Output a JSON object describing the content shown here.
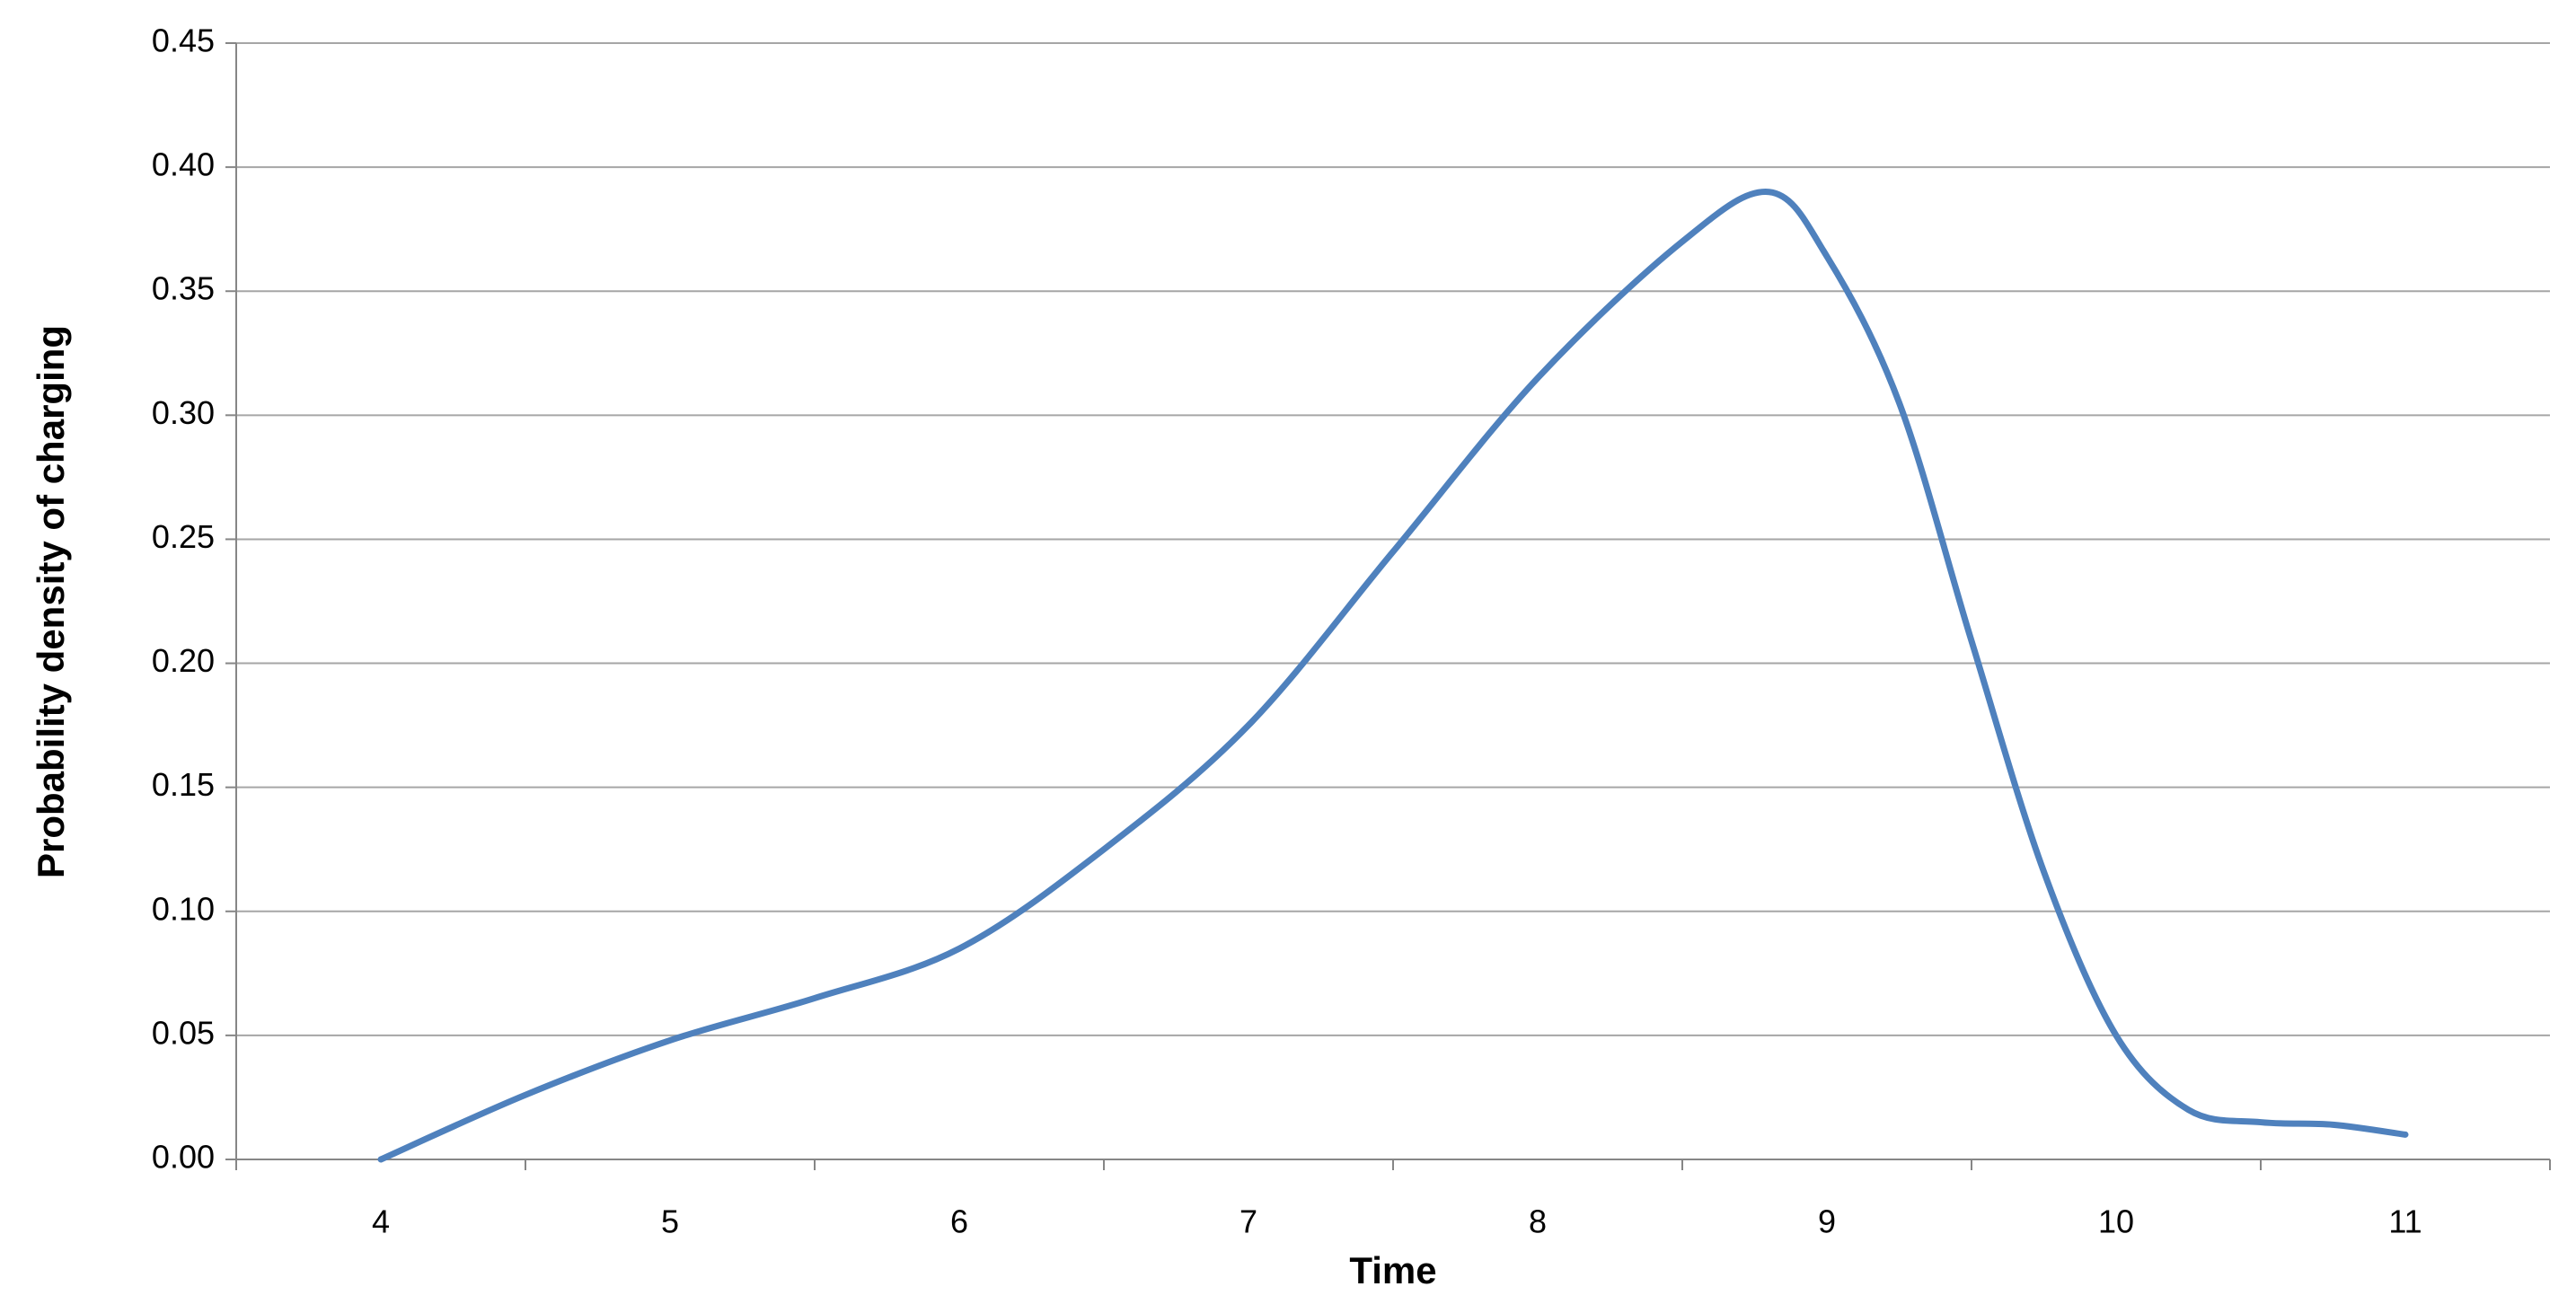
{
  "chart_data": {
    "type": "line",
    "x_label": "Time",
    "y_label": "Probability  density of charging",
    "x": [
      4,
      4.5,
      5,
      5.5,
      6,
      6.5,
      7,
      7.5,
      8,
      8.5,
      8.8,
      9,
      9.25,
      9.5,
      9.75,
      10,
      10.25,
      10.5,
      10.75,
      11
    ],
    "series": [
      {
        "name": "Probability density of charging",
        "color": "#4f81bd",
        "values": [
          0,
          0.026,
          0.048,
          0.065,
          0.085,
          0.125,
          0.175,
          0.245,
          0.315,
          0.37,
          0.39,
          0.364,
          0.305,
          0.209,
          0.116,
          0.05,
          0.02,
          0.015,
          0.014,
          0.01
        ]
      }
    ],
    "xlim": [
      3.5,
      11.5
    ],
    "xticks": [
      4,
      5,
      6,
      7,
      8,
      9,
      10,
      11
    ],
    "ylim": [
      0,
      0.45
    ],
    "yticks": [
      {
        "value": 0,
        "label": "0.00"
      },
      {
        "value": 0.05,
        "label": "0.05"
      },
      {
        "value": 0.1,
        "label": "0.10"
      },
      {
        "value": 0.15,
        "label": "0.15"
      },
      {
        "value": 0.2,
        "label": "0.20"
      },
      {
        "value": 0.25,
        "label": "0.25"
      },
      {
        "value": 0.3,
        "label": "0.30"
      },
      {
        "value": 0.35,
        "label": "0.35"
      },
      {
        "value": 0.4,
        "label": "0.40"
      },
      {
        "value": 0.45,
        "label": "0.45"
      }
    ],
    "grid": true
  }
}
